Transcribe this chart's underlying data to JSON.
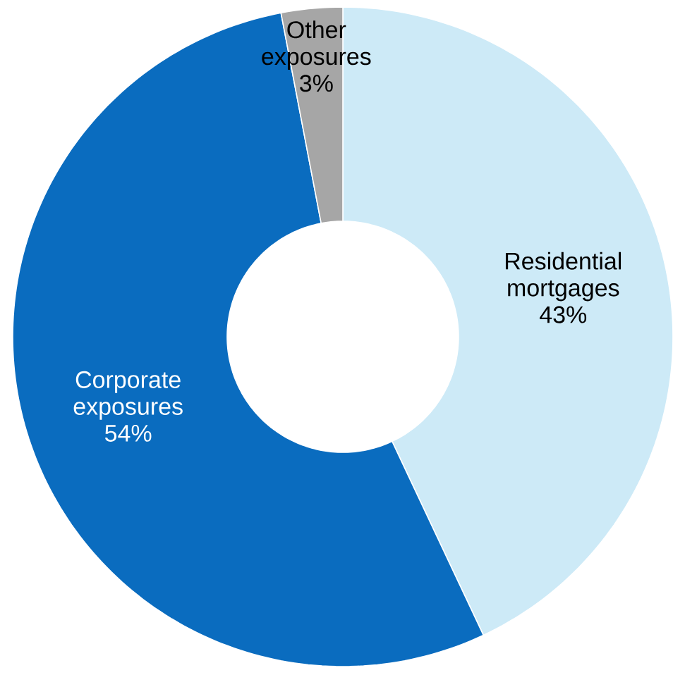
{
  "chart_data": {
    "type": "donut",
    "categories": [
      "Residential mortgages",
      "Corporate exposures",
      "Other exposures"
    ],
    "values": [
      43,
      54,
      3
    ],
    "colors": [
      "#cdeaf7",
      "#0a6cbf",
      "#a6a6a6"
    ],
    "value_labels": [
      "43%",
      "54%",
      "3%"
    ]
  }
}
